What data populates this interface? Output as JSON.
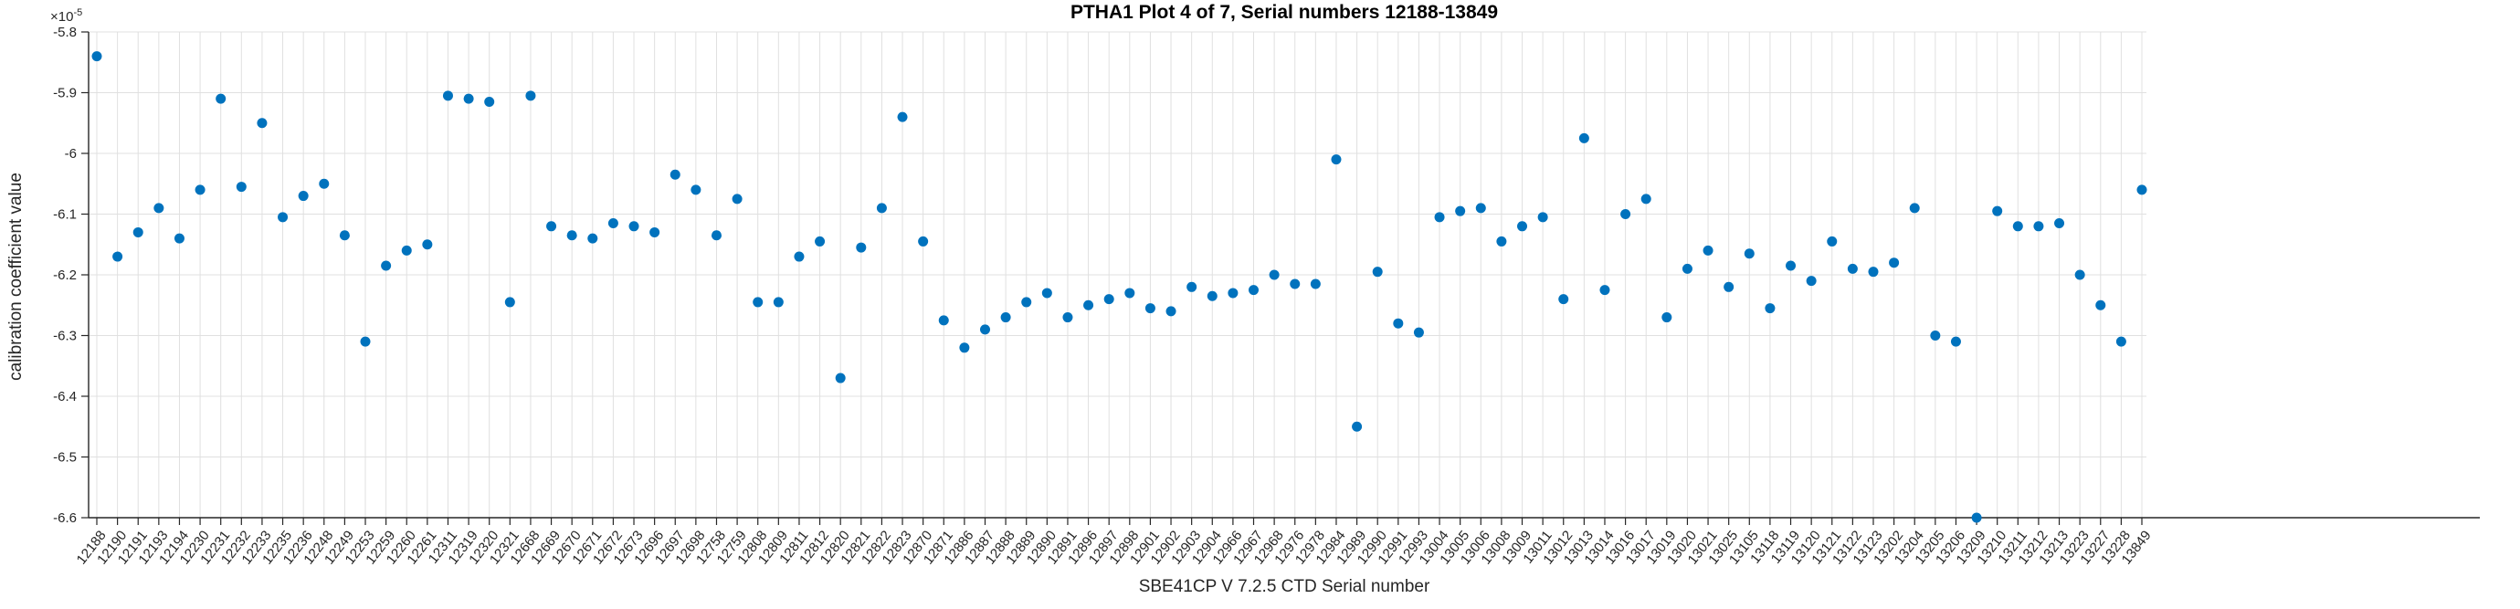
{
  "chart_data": {
    "type": "scatter",
    "title": "PTHA1 Plot 4 of 7, Serial numbers 12188-13849",
    "xlabel": "SBE41CP V 7.2.5 CTD Serial number",
    "ylabel": "calibration coefficient value",
    "y_exponent": {
      "base": "×10",
      "power": "-5"
    },
    "ylim": [
      -6.6,
      -5.8
    ],
    "ytick_labels": [
      "-5.8",
      "-5.9",
      "-6",
      "-6.1",
      "-6.2",
      "-6.3",
      "-6.4",
      "-6.5",
      "-6.6"
    ],
    "grid": true,
    "legend": "none",
    "marker": "filled-circle",
    "marker_color": "#0072BD",
    "axis_color": "#262626",
    "grid_color": "#e0e0e0",
    "categories": [
      "12188",
      "12190",
      "12191",
      "12193",
      "12194",
      "12230",
      "12231",
      "12232",
      "12233",
      "12235",
      "12236",
      "12248",
      "12249",
      "12253",
      "12259",
      "12260",
      "12261",
      "12311",
      "12319",
      "12320",
      "12321",
      "12668",
      "12669",
      "12670",
      "12671",
      "12672",
      "12673",
      "12696",
      "12697",
      "12698",
      "12758",
      "12759",
      "12808",
      "12809",
      "12811",
      "12812",
      "12820",
      "12821",
      "12822",
      "12823",
      "12870",
      "12871",
      "12886",
      "12887",
      "12888",
      "12889",
      "12890",
      "12891",
      "12896",
      "12897",
      "12898",
      "12901",
      "12902",
      "12903",
      "12904",
      "12966",
      "12967",
      "12968",
      "12976",
      "12978",
      "12984",
      "12989",
      "12990",
      "12991",
      "12993",
      "13004",
      "13005",
      "13006",
      "13008",
      "13009",
      "13011",
      "13012",
      "13013",
      "13014",
      "13016",
      "13017",
      "13019",
      "13020",
      "13021",
      "13025",
      "13105",
      "13118",
      "13119",
      "13120",
      "13121",
      "13122",
      "13123",
      "13202",
      "13204",
      "13205",
      "13206",
      "13209",
      "13210",
      "13211",
      "13212",
      "13213",
      "13223",
      "13227",
      "13228",
      "13849"
    ],
    "values": [
      -5.84,
      -6.17,
      -6.13,
      -6.09,
      -6.14,
      -6.06,
      -5.91,
      -6.055,
      -5.95,
      -6.105,
      -6.07,
      -6.05,
      -6.135,
      -6.31,
      -6.185,
      -6.16,
      -6.15,
      -5.905,
      -5.91,
      -5.915,
      -6.245,
      -5.905,
      -6.12,
      -6.135,
      -6.14,
      -6.115,
      -6.12,
      -6.13,
      -6.035,
      -6.06,
      -6.135,
      -6.075,
      -6.245,
      -6.245,
      -6.17,
      -6.145,
      -6.37,
      -6.155,
      -6.09,
      -5.94,
      -6.145,
      -6.275,
      -6.32,
      -6.29,
      -6.27,
      -6.245,
      -6.23,
      -6.27,
      -6.25,
      -6.24,
      -6.23,
      -6.255,
      -6.26,
      -6.22,
      -6.235,
      -6.23,
      -6.225,
      -6.2,
      -6.215,
      -6.215,
      -6.01,
      -6.45,
      -6.195,
      -6.28,
      -6.295,
      -6.105,
      -6.095,
      -6.09,
      -6.145,
      -6.12,
      -6.105,
      -6.24,
      -5.975,
      -6.225,
      -6.1,
      -6.075,
      -6.27,
      -6.19,
      -6.16,
      -6.22,
      -6.165,
      -6.255,
      -6.185,
      -6.21,
      -6.145,
      -6.19,
      -6.195,
      -6.18,
      -6.09,
      -6.3,
      -6.31,
      -6.6,
      -6.095,
      -6.12,
      -6.12,
      -6.115,
      -6.2,
      -6.25,
      -6.31,
      -6.06
    ]
  }
}
